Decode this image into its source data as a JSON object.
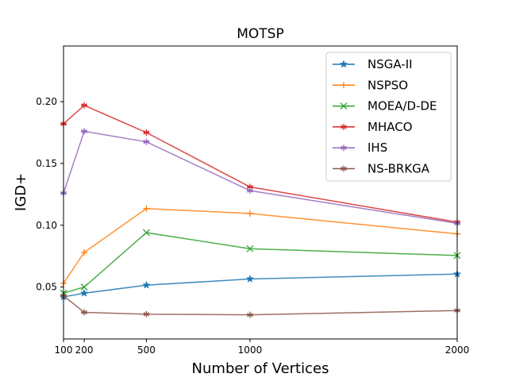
{
  "chart_data": {
    "type": "line",
    "title": "MOTSP",
    "xlabel": "Number of Vertices",
    "ylabel": "IGD+",
    "xlim": [
      100,
      2000
    ],
    "ylim": [
      0.008,
      0.245
    ],
    "x": [
      100,
      200,
      500,
      1000,
      2000
    ],
    "xticks": [
      100,
      200,
      500,
      1000,
      2000
    ],
    "xtick_labels": [
      "100",
      "200",
      "500",
      "1000",
      "2000"
    ],
    "yticks": [
      0.05,
      0.1,
      0.15,
      0.2
    ],
    "ytick_labels": [
      "0.05",
      "0.10",
      "0.15",
      "0.20"
    ],
    "grid": false,
    "legend_position": "top-right",
    "series": [
      {
        "name": "NSGA-II",
        "color": "#1f77b4",
        "marker": "star",
        "values": [
          0.042,
          0.045,
          0.0515,
          0.0565,
          0.0605
        ]
      },
      {
        "name": "NSPSO",
        "color": "#ff7f0e",
        "marker": "plus",
        "values": [
          0.053,
          0.078,
          0.1135,
          0.1095,
          0.093
        ]
      },
      {
        "name": "MOEA/D-DE",
        "color": "#2ca02c",
        "marker": "x",
        "values": [
          0.045,
          0.05,
          0.094,
          0.081,
          0.0755
        ]
      },
      {
        "name": "MHACO",
        "color": "#d62728",
        "marker": "asterisk",
        "values": [
          0.182,
          0.197,
          0.175,
          0.131,
          0.1025
        ]
      },
      {
        "name": "IHS",
        "color": "#9467bd",
        "marker": "asterisk",
        "values": [
          0.126,
          0.176,
          0.1675,
          0.128,
          0.1015
        ]
      },
      {
        "name": "NS-BRKGA",
        "color": "#8c564b",
        "marker": "asterisk",
        "values": [
          0.043,
          0.0295,
          0.028,
          0.0275,
          0.031
        ]
      }
    ]
  }
}
